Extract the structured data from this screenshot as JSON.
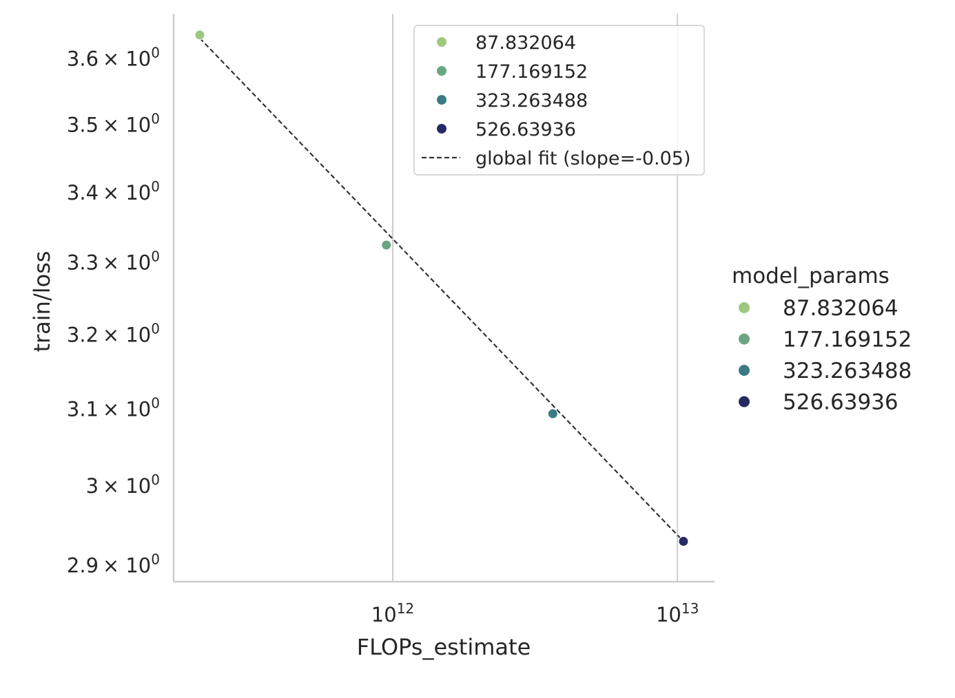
{
  "chart_data": {
    "type": "scatter",
    "xlabel": "FLOPs_estimate",
    "ylabel": "train/loss",
    "xscale": "log",
    "yscale": "log",
    "xlim": [
      170000000000,
      13500000000000
    ],
    "ylim": [
      2.88,
      3.67
    ],
    "grid": "x-only",
    "x_ticks": [
      {
        "value": 1000000000000,
        "base": "10",
        "exp": "12"
      },
      {
        "value": 10000000000000,
        "base": "10",
        "exp": "13"
      }
    ],
    "y_ticks": [
      {
        "value": 3.6,
        "mant": "3.6",
        "base": "× 10",
        "exp": "0"
      },
      {
        "value": 3.5,
        "mant": "3.5",
        "base": "× 10",
        "exp": "0"
      },
      {
        "value": 3.4,
        "mant": "3.4",
        "base": "× 10",
        "exp": "0"
      },
      {
        "value": 3.3,
        "mant": "3.3",
        "base": "× 10",
        "exp": "0"
      },
      {
        "value": 3.2,
        "mant": "3.2",
        "base": "× 10",
        "exp": "0"
      },
      {
        "value": 3.1,
        "mant": "3.1",
        "base": "× 10",
        "exp": "0"
      },
      {
        "value": 3.0,
        "mant": "3",
        "base": "× 10",
        "exp": "0"
      },
      {
        "value": 2.9,
        "mant": "2.9",
        "base": "× 10",
        "exp": "0"
      }
    ],
    "series": [
      {
        "name": "87.832064",
        "color": "#9dc97f",
        "points": [
          {
            "x": 210000000000,
            "y": 3.637
          }
        ]
      },
      {
        "name": "177.169152",
        "color": "#6aa681",
        "points": [
          {
            "x": 950000000000,
            "y": 3.325
          }
        ]
      },
      {
        "name": "323.263488",
        "color": "#3a7b85",
        "points": [
          {
            "x": 3650000000000,
            "y": 3.094
          }
        ]
      },
      {
        "name": "526.63936",
        "color": "#262b64",
        "points": [
          {
            "x": 10500000000000,
            "y": 2.93
          }
        ]
      }
    ],
    "fit_line": {
      "label": "global fit (slope=-0.05)",
      "color": "#333333",
      "points": [
        {
          "x": 210000000000,
          "y": 3.632
        },
        {
          "x": 10500000000000,
          "y": 2.93
        }
      ]
    },
    "inner_legend_placement": "upper-right",
    "outer_legend": {
      "title": "model_params",
      "placement": "right"
    }
  }
}
